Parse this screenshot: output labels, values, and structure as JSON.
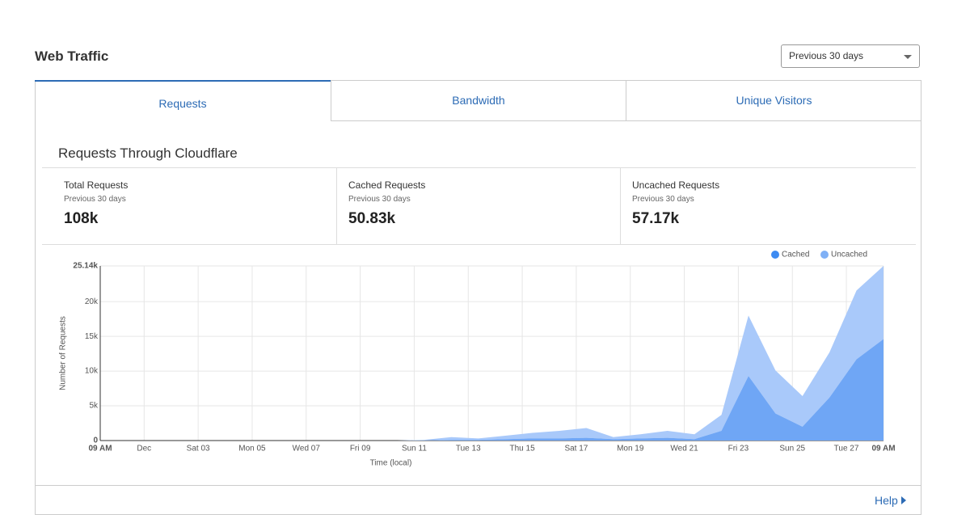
{
  "header": {
    "title": "Web Traffic",
    "range_select": "Previous 30 days"
  },
  "tabs": [
    "Requests",
    "Bandwidth",
    "Unique Visitors"
  ],
  "panel_title": "Requests Through Cloudflare",
  "stats": [
    {
      "label": "Total Requests",
      "period": "Previous 30 days",
      "value": "108k"
    },
    {
      "label": "Cached Requests",
      "period": "Previous 30 days",
      "value": "50.83k"
    },
    {
      "label": "Uncached Requests",
      "period": "Previous 30 days",
      "value": "57.17k"
    }
  ],
  "chart_data": {
    "type": "stacked_area",
    "x_label": "Time (local)",
    "y_label": "Number of Requests",
    "x": [
      0,
      1,
      2,
      3,
      4,
      5,
      6,
      7,
      8,
      9,
      10,
      11,
      12,
      13,
      14,
      15,
      16,
      17,
      18,
      19,
      20,
      21,
      22,
      23,
      24,
      25,
      26,
      27,
      28,
      29
    ],
    "series": [
      {
        "name": "Cached",
        "color": "#6fa6f5",
        "legend_color": "#3d8bf2",
        "values": [
          0,
          0,
          0,
          0,
          0,
          0,
          0,
          0,
          0,
          0,
          0,
          0,
          0,
          100,
          100,
          200,
          300,
          300,
          400,
          200,
          300,
          400,
          200,
          1400,
          9300,
          3900,
          2000,
          6200,
          11700,
          14600
        ]
      },
      {
        "name": "Uncached",
        "color": "#a9c9fa",
        "legend_color": "#7fb0f6",
        "values": [
          0,
          0,
          0,
          0,
          0,
          0,
          0,
          0,
          0,
          0,
          0,
          0,
          100,
          400,
          200,
          500,
          800,
          1100,
          1400,
          300,
          600,
          1000,
          700,
          2300,
          8700,
          6200,
          4400,
          6500,
          9900,
          10540
        ]
      }
    ],
    "xlim": [
      0,
      29
    ],
    "xticks": [
      {
        "value": 0,
        "label": "09 AM"
      },
      {
        "value": 1.625,
        "label": "Dec"
      },
      {
        "value": 3.625,
        "label": "Sat 03"
      },
      {
        "value": 5.625,
        "label": "Mon 05"
      },
      {
        "value": 7.625,
        "label": "Wed 07"
      },
      {
        "value": 9.625,
        "label": "Fri 09"
      },
      {
        "value": 11.625,
        "label": "Sun 11"
      },
      {
        "value": 13.625,
        "label": "Tue 13"
      },
      {
        "value": 15.625,
        "label": "Thu 15"
      },
      {
        "value": 17.625,
        "label": "Sat 17"
      },
      {
        "value": 19.625,
        "label": "Mon 19"
      },
      {
        "value": 21.625,
        "label": "Wed 21"
      },
      {
        "value": 23.625,
        "label": "Fri 23"
      },
      {
        "value": 25.625,
        "label": "Sun 25"
      },
      {
        "value": 27.625,
        "label": "Tue 27"
      },
      {
        "value": 29,
        "label": "09 AM"
      }
    ],
    "ylim": [
      0,
      25140
    ],
    "yticks": [
      0,
      {
        "value": 5000,
        "label": "5k"
      },
      {
        "value": 10000,
        "label": "10k"
      },
      {
        "value": 15000,
        "label": "15k"
      },
      {
        "value": 20000,
        "label": "20k"
      },
      {
        "value": 25140,
        "label": "25.14k"
      }
    ],
    "grid": true,
    "legend": "top-right"
  },
  "footer": {
    "help": "Help"
  }
}
